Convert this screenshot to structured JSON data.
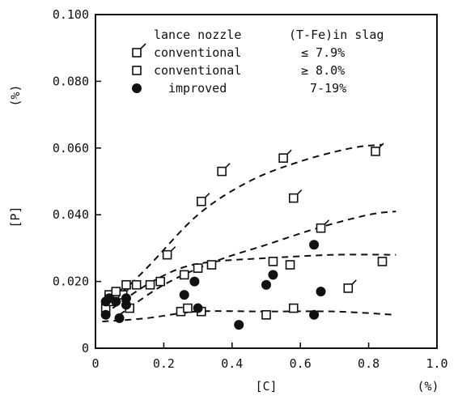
{
  "chart_data": {
    "type": "scatter",
    "xlabel": "[C]",
    "xunit": "(%)",
    "ylabel": "[P]",
    "yunit": "(%)",
    "xlim": [
      0,
      1.0
    ],
    "ylim": [
      0,
      0.1
    ],
    "x_ticks": [
      "0",
      "0.2",
      "0.4",
      "0.6",
      "0.8",
      "1.0"
    ],
    "y_ticks": [
      "0",
      "0.020",
      "0.040",
      "0.060",
      "0.080",
      "0.100"
    ],
    "grid": false,
    "legend_placement": "top-left",
    "legend": {
      "header_nozzle": "lance nozzle",
      "header_slag": "(T-Fe)in slag",
      "entries": [
        {
          "nozzle": "conventional",
          "slag": "≤ 7.9%"
        },
        {
          "nozzle": "conventional",
          "slag": "≥ 8.0%"
        },
        {
          "nozzle": "improved",
          "slag": "7-19%"
        }
      ]
    },
    "series": [
      {
        "marker": "flagged-square",
        "points": [
          [
            0.04,
            0.015
          ],
          [
            0.06,
            0.016
          ],
          [
            0.08,
            0.016
          ],
          [
            0.21,
            0.028
          ],
          [
            0.31,
            0.044
          ],
          [
            0.37,
            0.053
          ],
          [
            0.55,
            0.057
          ],
          [
            0.58,
            0.045
          ],
          [
            0.66,
            0.036
          ],
          [
            0.74,
            0.018
          ],
          [
            0.82,
            0.059
          ]
        ]
      },
      {
        "marker": "open-square",
        "points": [
          [
            0.03,
            0.012
          ],
          [
            0.04,
            0.016
          ],
          [
            0.05,
            0.014
          ],
          [
            0.06,
            0.017
          ],
          [
            0.09,
            0.019
          ],
          [
            0.1,
            0.012
          ],
          [
            0.12,
            0.019
          ],
          [
            0.16,
            0.019
          ],
          [
            0.19,
            0.02
          ],
          [
            0.25,
            0.011
          ],
          [
            0.26,
            0.022
          ],
          [
            0.27,
            0.012
          ],
          [
            0.3,
            0.024
          ],
          [
            0.31,
            0.011
          ],
          [
            0.34,
            0.025
          ],
          [
            0.5,
            0.01
          ],
          [
            0.52,
            0.026
          ],
          [
            0.57,
            0.025
          ],
          [
            0.58,
            0.012
          ],
          [
            0.84,
            0.026
          ]
        ]
      },
      {
        "marker": "filled-circle",
        "points": [
          [
            0.03,
            0.01
          ],
          [
            0.03,
            0.014
          ],
          [
            0.04,
            0.015
          ],
          [
            0.06,
            0.014
          ],
          [
            0.07,
            0.009
          ],
          [
            0.09,
            0.015
          ],
          [
            0.09,
            0.013
          ],
          [
            0.26,
            0.016
          ],
          [
            0.29,
            0.02
          ],
          [
            0.3,
            0.012
          ],
          [
            0.42,
            0.007
          ],
          [
            0.5,
            0.019
          ],
          [
            0.52,
            0.022
          ],
          [
            0.64,
            0.031
          ],
          [
            0.64,
            0.01
          ],
          [
            0.66,
            0.017
          ]
        ]
      }
    ],
    "curves": [
      {
        "style": "dashed",
        "points": [
          [
            0.03,
            0.012
          ],
          [
            0.15,
            0.024
          ],
          [
            0.3,
            0.04
          ],
          [
            0.45,
            0.05
          ],
          [
            0.6,
            0.056
          ],
          [
            0.75,
            0.06
          ],
          [
            0.84,
            0.061
          ]
        ]
      },
      {
        "style": "dashed",
        "points": [
          [
            0.07,
            0.01
          ],
          [
            0.2,
            0.019
          ],
          [
            0.35,
            0.026
          ],
          [
            0.5,
            0.031
          ],
          [
            0.65,
            0.036
          ],
          [
            0.8,
            0.04
          ],
          [
            0.88,
            0.041
          ]
        ]
      },
      {
        "style": "dashed",
        "points": [
          [
            0.05,
            0.012
          ],
          [
            0.15,
            0.019
          ],
          [
            0.25,
            0.024
          ],
          [
            0.35,
            0.026
          ],
          [
            0.5,
            0.027
          ],
          [
            0.7,
            0.028
          ],
          [
            0.88,
            0.028
          ]
        ]
      },
      {
        "style": "dashed",
        "points": [
          [
            0.02,
            0.008
          ],
          [
            0.15,
            0.009
          ],
          [
            0.3,
            0.011
          ],
          [
            0.5,
            0.011
          ],
          [
            0.7,
            0.011
          ],
          [
            0.88,
            0.01
          ]
        ]
      }
    ]
  }
}
